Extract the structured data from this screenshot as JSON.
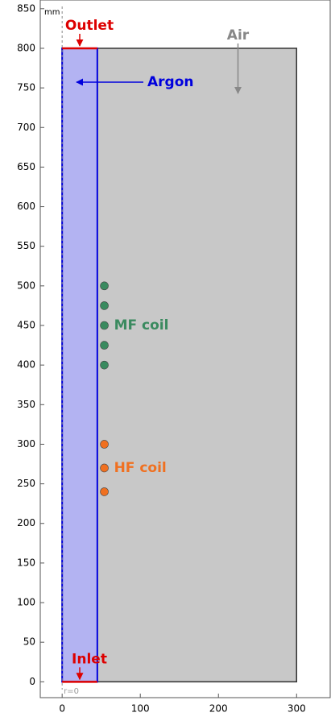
{
  "chart_data": {
    "type": "geometry",
    "unit": "mm",
    "origin_label": "r=0",
    "xlim": [
      -28,
      343
    ],
    "ylim": [
      -20,
      861
    ],
    "xticks": [
      0,
      100,
      200,
      300
    ],
    "yticks": [
      0,
      50,
      100,
      150,
      200,
      250,
      300,
      350,
      400,
      450,
      500,
      550,
      600,
      650,
      700,
      750,
      800,
      850
    ],
    "domains": [
      {
        "name": "Air",
        "color": "#c8c8c8",
        "stroke": "#333333",
        "x": [
          0,
          300
        ],
        "y": [
          0,
          800
        ]
      },
      {
        "name": "Argon",
        "color": "#b3b3f2",
        "stroke": "#0000dd",
        "x": [
          0,
          45
        ],
        "y": [
          0,
          800
        ]
      }
    ],
    "coils": [
      {
        "name": "MF coil",
        "color": "#3a8a5f",
        "x": [
          54,
          54,
          54,
          54,
          54
        ],
        "y": [
          500,
          475,
          450,
          425,
          400
        ]
      },
      {
        "name": "HF coil",
        "color": "#f07020",
        "x": [
          54,
          54,
          54
        ],
        "y": [
          300,
          270,
          240
        ]
      }
    ],
    "boundaries": [
      {
        "name": "Outlet",
        "color": "#dd0000",
        "y": 800
      },
      {
        "name": "Inlet",
        "color": "#dd0000",
        "y": 0
      }
    ]
  }
}
